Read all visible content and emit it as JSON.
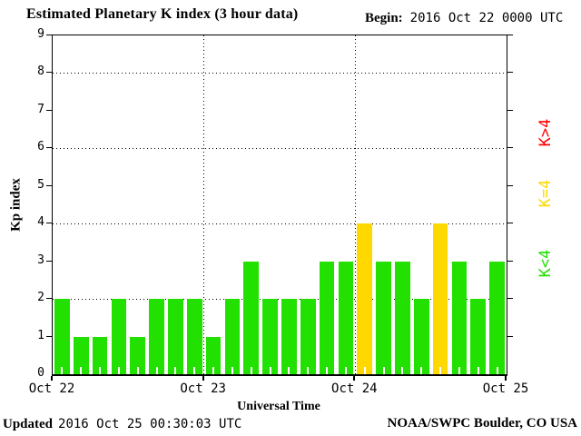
{
  "title_block": {
    "begin_label": "Begin:",
    "begin_value": "2016 Oct 22 0000 UTC"
  },
  "footer": {
    "updated_label": "Updated",
    "updated_value": "2016 Oct 25 00:30:03 UTC",
    "credit": "NOAA/SWPC Boulder, CO USA"
  },
  "chart_data": {
    "type": "bar",
    "title": "Estimated Planetary K index (3 hour data)",
    "xlabel": "Universal Time",
    "ylabel": "Kp index",
    "ylim": [
      0,
      9
    ],
    "yticks": [
      0,
      1,
      2,
      3,
      4,
      5,
      6,
      7,
      8,
      9
    ],
    "grid_y_dotted": [
      2,
      4,
      6,
      8
    ],
    "grid": "dotted",
    "legend_position": "right",
    "hours_per_bar": 3,
    "day_labels": [
      "Oct 22",
      "Oct 23",
      "Oct 24",
      "Oct 25"
    ],
    "values": [
      2,
      1,
      1,
      2,
      1,
      2,
      2,
      2,
      1,
      2,
      3,
      2,
      2,
      2,
      3,
      3,
      4,
      3,
      3,
      2,
      4,
      3,
      2,
      3
    ],
    "bar_day_of": [
      0,
      0,
      0,
      0,
      0,
      0,
      0,
      0,
      1,
      1,
      1,
      1,
      1,
      1,
      1,
      1,
      2,
      2,
      2,
      2,
      2,
      2,
      2,
      2
    ],
    "colors": {
      "low": "#22e000",
      "mid": "#ffd800",
      "high": "#ff0000",
      "axis": "#000000",
      "background": "#ffffff"
    },
    "threshold_mid": 4,
    "legend": [
      {
        "label": "K>4",
        "color_key": "high"
      },
      {
        "label": "K=4",
        "color_key": "mid"
      },
      {
        "label": "K<4",
        "color_key": "low"
      }
    ]
  }
}
